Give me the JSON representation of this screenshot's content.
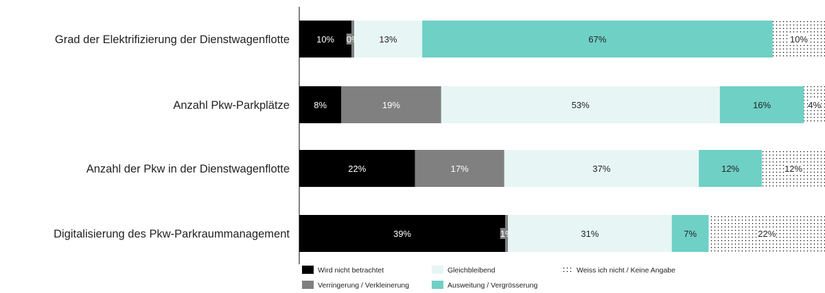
{
  "chart_data": {
    "type": "bar",
    "orientation": "horizontal",
    "stacked": true,
    "normalized_percent": true,
    "grid": false,
    "legend_position": "bottom",
    "categories": [
      "Grad der Elektrifizierung der Dienstwagenflotte",
      "Anzahl Pkw-Parkplätze",
      "Anzahl der Pkw in der Dienstwagenflotte",
      "Digitalisierung des Pkw-Parkraummanagement"
    ],
    "series": [
      {
        "name": "Wird  nicht betrachtet",
        "color": "#000000",
        "pattern": "solid",
        "label_color": "#ffffff",
        "values": [
          10,
          8,
          22,
          39
        ],
        "labels": [
          "10%",
          "8%",
          "22%",
          "39%"
        ]
      },
      {
        "name": "Verringerung / Verkleinerung",
        "color": "#808080",
        "pattern": "solid",
        "label_color": "#ffffff",
        "values": [
          0.5,
          19,
          17,
          0.5
        ],
        "labels": [
          "0%",
          "19%",
          "17%",
          "1%"
        ]
      },
      {
        "name": "Gleichbleibend",
        "color": "#e7f6f4",
        "pattern": "solid",
        "label_color": "#222222",
        "values": [
          13,
          53,
          37,
          31
        ],
        "labels": [
          "13%",
          "53%",
          "37%",
          "31%"
        ]
      },
      {
        "name": "Ausweitung / Vergrösserung",
        "color": "#6fd0c6",
        "pattern": "solid",
        "label_color": "#222222",
        "values": [
          67,
          16,
          12,
          7
        ],
        "labels": [
          "67%",
          "16%",
          "12%",
          "7%"
        ]
      },
      {
        "name": "Weiss ich nicht / Keine Angabe",
        "color": "#000000",
        "pattern": "dots",
        "label_color": "#222222",
        "values": [
          10,
          4,
          12,
          22
        ],
        "labels": [
          "10%",
          "4%",
          "12%",
          "22%"
        ]
      }
    ],
    "legend_layout": [
      {
        "series": 0,
        "col": 0,
        "row": 0
      },
      {
        "series": 2,
        "col": 1,
        "row": 0
      },
      {
        "series": 4,
        "col": 2,
        "row": 0
      },
      {
        "series": 1,
        "col": 0,
        "row": 1
      },
      {
        "series": 3,
        "col": 1,
        "row": 1
      }
    ]
  }
}
